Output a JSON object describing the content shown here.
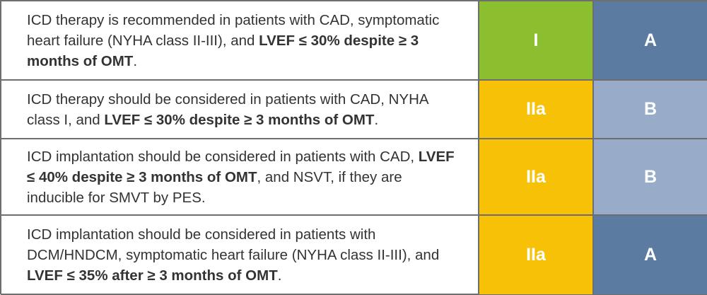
{
  "table": {
    "rows": [
      {
        "text": [
          {
            "text": "ICD therapy is recommended in patients with CAD, symptomatic heart failure (NYHA class II-III), and ",
            "bold": false
          },
          {
            "text": "LVEF ≤ 30% despite ≥ 3 months of OMT",
            "bold": true
          },
          {
            "text": ".",
            "bold": false
          }
        ],
        "class": "I",
        "class_color": "#8cbf2f",
        "level": "A",
        "level_color": "#5b7ca0"
      },
      {
        "text": [
          {
            "text": "ICD therapy should be considered in patients with CAD, NYHA class I, and ",
            "bold": false
          },
          {
            "text": "LVEF ≤ 30% despite ≥ 3 months of OMT",
            "bold": true
          },
          {
            "text": ".",
            "bold": false
          }
        ],
        "class": "IIa",
        "class_color": "#f7c108",
        "level": "B",
        "level_color": "#98acca"
      },
      {
        "text": [
          {
            "text": "ICD implantation should be considered in patients with CAD, ",
            "bold": false
          },
          {
            "text": "LVEF ≤ 40% despite ≥ 3 months of OMT",
            "bold": true
          },
          {
            "text": ", and NSVT, if they are inducible for SMVT by PES.",
            "bold": false
          }
        ],
        "class": "IIa",
        "class_color": "#f7c108",
        "level": "B",
        "level_color": "#98acca"
      },
      {
        "text": [
          {
            "text": "ICD implantation should be considered in patients with DCM/HNDCM, symptomatic heart failure (NYHA class II-III), and ",
            "bold": false
          },
          {
            "text": "LVEF ≤ 35% after ≥ 3 months of OMT",
            "bold": true
          },
          {
            "text": ".",
            "bold": false
          }
        ],
        "class": "IIa",
        "class_color": "#f7c108",
        "level": "A",
        "level_color": "#5b7ca0"
      }
    ]
  }
}
